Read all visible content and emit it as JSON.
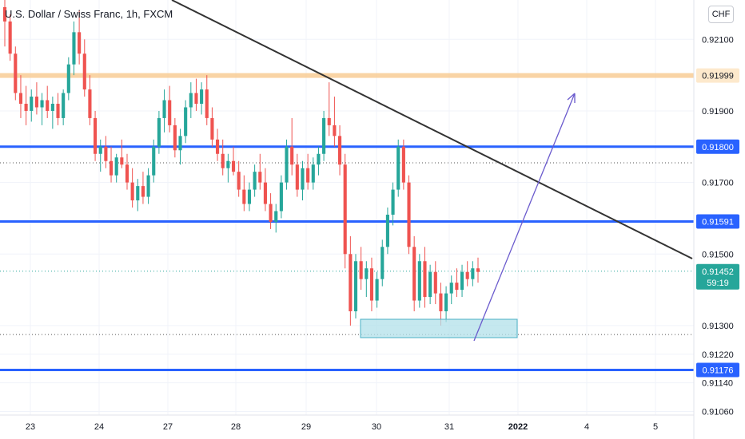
{
  "header": {
    "title": "U.S. Dollar / Swiss Franc, 1h, FXCM",
    "currency_badge": "CHF"
  },
  "colors": {
    "up": "#26a69a",
    "down": "#ef5350",
    "support_line": "#2962ff",
    "resistance_band": "#f7c98f",
    "trendline": "#333333",
    "projection_arrow": "#6a5acd",
    "box_fill": "#b2e0ea",
    "box_stroke": "#4ab0c4",
    "last_price": "#26a69a",
    "axis_text": "#131722"
  },
  "chart_data": {
    "type": "candlestick",
    "x_tick_labels": [
      "23",
      "24",
      "27",
      "28",
      "29",
      "30",
      "31",
      "2022",
      "4",
      "5"
    ],
    "y_tick_labels": [
      "0.92100",
      "0.91900",
      "0.91700",
      "0.91500",
      "0.91300",
      "0.91220",
      "0.91140",
      "0.91060"
    ],
    "ylim": [
      0.9105,
      0.9221
    ],
    "horizontal_levels": [
      {
        "value": 0.91999,
        "label": "0.91999",
        "style": "band"
      },
      {
        "value": 0.918,
        "label": "0.91800",
        "style": "solid"
      },
      {
        "value": 0.91591,
        "label": "0.91591",
        "style": "solid"
      },
      {
        "value": 0.91176,
        "label": "0.91176",
        "style": "solid"
      }
    ],
    "last_price": {
      "value": 0.91452,
      "label": "0.91452",
      "countdown": "59:19"
    },
    "candles_ohlc": [
      [
        0.9219,
        0.9225,
        0.9208,
        0.9215
      ],
      [
        0.9215,
        0.9217,
        0.9204,
        0.9206
      ],
      [
        0.9206,
        0.9208,
        0.9193,
        0.9195
      ],
      [
        0.9195,
        0.92,
        0.9188,
        0.9192
      ],
      [
        0.9192,
        0.9197,
        0.9186,
        0.919
      ],
      [
        0.919,
        0.9196,
        0.9187,
        0.9194
      ],
      [
        0.9194,
        0.9198,
        0.9189,
        0.9191
      ],
      [
        0.9191,
        0.9195,
        0.9186,
        0.9193
      ],
      [
        0.9193,
        0.9197,
        0.9188,
        0.919
      ],
      [
        0.919,
        0.9194,
        0.9185,
        0.9192
      ],
      [
        0.9192,
        0.9195,
        0.9186,
        0.9188
      ],
      [
        0.9188,
        0.9196,
        0.9186,
        0.9195
      ],
      [
        0.9195,
        0.9205,
        0.9193,
        0.9203
      ],
      [
        0.9203,
        0.9215,
        0.92,
        0.9212
      ],
      [
        0.9212,
        0.9218,
        0.9203,
        0.9206
      ],
      [
        0.9206,
        0.921,
        0.9194,
        0.9196
      ],
      [
        0.9196,
        0.92,
        0.9186,
        0.9188
      ],
      [
        0.9188,
        0.919,
        0.9176,
        0.9178
      ],
      [
        0.9178,
        0.9182,
        0.9173,
        0.918
      ],
      [
        0.918,
        0.9183,
        0.9174,
        0.9176
      ],
      [
        0.9176,
        0.918,
        0.917,
        0.9172
      ],
      [
        0.9172,
        0.9178,
        0.917,
        0.9177
      ],
      [
        0.9177,
        0.9182,
        0.9174,
        0.9175
      ],
      [
        0.9175,
        0.9178,
        0.9168,
        0.917
      ],
      [
        0.917,
        0.9174,
        0.9163,
        0.9165
      ],
      [
        0.9165,
        0.9171,
        0.9162,
        0.9169
      ],
      [
        0.9169,
        0.9173,
        0.9164,
        0.9166
      ],
      [
        0.9166,
        0.9174,
        0.9164,
        0.9172
      ],
      [
        0.9172,
        0.9182,
        0.917,
        0.918
      ],
      [
        0.918,
        0.919,
        0.9178,
        0.9188
      ],
      [
        0.9188,
        0.9196,
        0.9184,
        0.9193
      ],
      [
        0.9193,
        0.9197,
        0.9184,
        0.9186
      ],
      [
        0.9186,
        0.9188,
        0.9177,
        0.9179
      ],
      [
        0.9179,
        0.9185,
        0.9175,
        0.9183
      ],
      [
        0.9183,
        0.9193,
        0.9181,
        0.9191
      ],
      [
        0.9191,
        0.9198,
        0.9188,
        0.9195
      ],
      [
        0.9195,
        0.9199,
        0.919,
        0.9192
      ],
      [
        0.9192,
        0.9198,
        0.9189,
        0.9196
      ],
      [
        0.9196,
        0.92,
        0.9186,
        0.9188
      ],
      [
        0.9188,
        0.9191,
        0.918,
        0.9182
      ],
      [
        0.9182,
        0.9185,
        0.9176,
        0.9178
      ],
      [
        0.9178,
        0.9182,
        0.9172,
        0.9174
      ],
      [
        0.9174,
        0.9178,
        0.917,
        0.9176
      ],
      [
        0.9176,
        0.918,
        0.9172,
        0.9173
      ],
      [
        0.9173,
        0.9176,
        0.9166,
        0.9168
      ],
      [
        0.9168,
        0.9172,
        0.9162,
        0.9164
      ],
      [
        0.9164,
        0.917,
        0.9162,
        0.9168
      ],
      [
        0.9168,
        0.9175,
        0.9166,
        0.9173
      ],
      [
        0.9173,
        0.9178,
        0.9168,
        0.917
      ],
      [
        0.917,
        0.9174,
        0.9162,
        0.9164
      ],
      [
        0.9164,
        0.9167,
        0.9157,
        0.9159
      ],
      [
        0.9159,
        0.9164,
        0.9156,
        0.9162
      ],
      [
        0.9162,
        0.9172,
        0.916,
        0.917
      ],
      [
        0.917,
        0.9182,
        0.9168,
        0.918
      ],
      [
        0.918,
        0.9188,
        0.9172,
        0.9175
      ],
      [
        0.9175,
        0.9178,
        0.9166,
        0.9168
      ],
      [
        0.9168,
        0.9176,
        0.9165,
        0.9174
      ],
      [
        0.9174,
        0.9178,
        0.9168,
        0.917
      ],
      [
        0.917,
        0.9177,
        0.9168,
        0.9175
      ],
      [
        0.9175,
        0.918,
        0.9172,
        0.9178
      ],
      [
        0.9178,
        0.919,
        0.9176,
        0.9188
      ],
      [
        0.9188,
        0.9198,
        0.9183,
        0.9186
      ],
      [
        0.9186,
        0.9194,
        0.918,
        0.9183
      ],
      [
        0.9183,
        0.9186,
        0.9172,
        0.9175
      ],
      [
        0.9175,
        0.9178,
        0.9146,
        0.915
      ],
      [
        0.915,
        0.9155,
        0.913,
        0.9134
      ],
      [
        0.9134,
        0.915,
        0.9132,
        0.9148
      ],
      [
        0.9148,
        0.9152,
        0.914,
        0.9143
      ],
      [
        0.9143,
        0.9148,
        0.9138,
        0.9146
      ],
      [
        0.9146,
        0.9149,
        0.9134,
        0.9137
      ],
      [
        0.9137,
        0.9145,
        0.9135,
        0.9143
      ],
      [
        0.9143,
        0.9154,
        0.9141,
        0.9152
      ],
      [
        0.9152,
        0.9163,
        0.915,
        0.9161
      ],
      [
        0.9161,
        0.917,
        0.9158,
        0.9168
      ],
      [
        0.9168,
        0.9182,
        0.9166,
        0.918
      ],
      [
        0.918,
        0.9182,
        0.9168,
        0.917
      ],
      [
        0.917,
        0.9172,
        0.915,
        0.9152
      ],
      [
        0.9152,
        0.9155,
        0.9134,
        0.9137
      ],
      [
        0.9137,
        0.915,
        0.9135,
        0.9148
      ],
      [
        0.9148,
        0.9152,
        0.9135,
        0.9138
      ],
      [
        0.9138,
        0.9147,
        0.9136,
        0.9145
      ],
      [
        0.9145,
        0.9148,
        0.9136,
        0.9139
      ],
      [
        0.9139,
        0.9142,
        0.913,
        0.9134
      ],
      [
        0.9134,
        0.9141,
        0.9131,
        0.9139
      ],
      [
        0.9139,
        0.9144,
        0.9136,
        0.9142
      ],
      [
        0.9142,
        0.9146,
        0.9138,
        0.914
      ],
      [
        0.914,
        0.9147,
        0.9138,
        0.9145
      ],
      [
        0.9145,
        0.9148,
        0.9141,
        0.9143
      ],
      [
        0.9143,
        0.9148,
        0.9141,
        0.9146
      ],
      [
        0.9146,
        0.9149,
        0.9142,
        0.9145
      ]
    ]
  }
}
